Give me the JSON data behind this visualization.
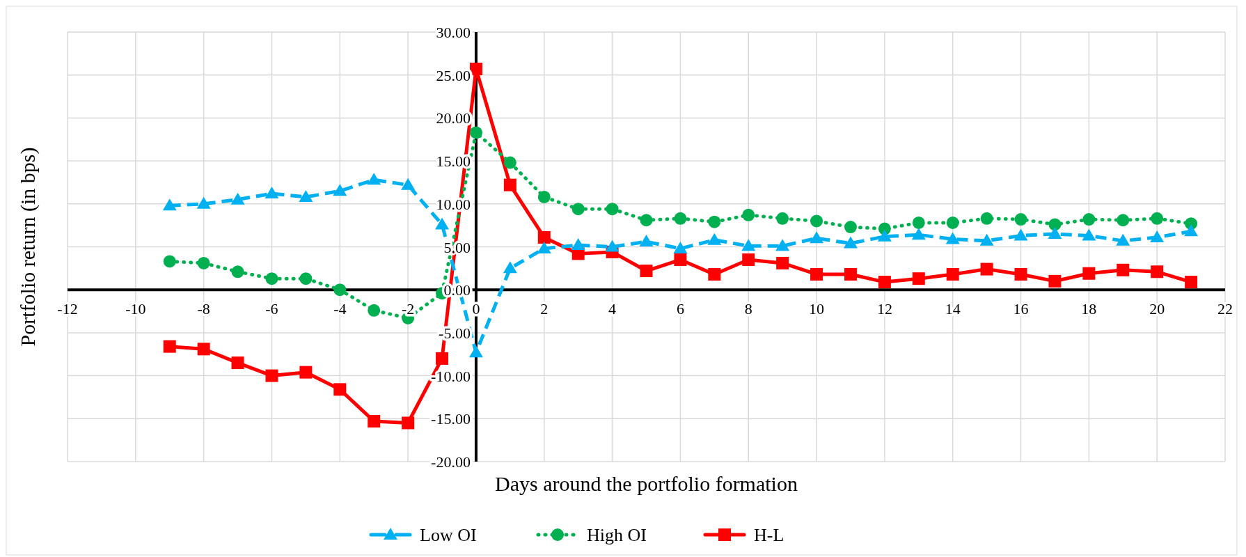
{
  "chart_data": {
    "type": "line",
    "xlabel": "Days around the portfolio formation",
    "ylabel": "Portfolio return (in bps)",
    "x": [
      -9,
      -8,
      -7,
      -6,
      -5,
      -4,
      -3,
      -2,
      -1,
      0,
      1,
      2,
      3,
      4,
      5,
      6,
      7,
      8,
      9,
      10,
      11,
      12,
      13,
      14,
      15,
      16,
      17,
      18,
      19,
      20,
      21
    ],
    "series": [
      {
        "name": "Low OI",
        "color": "#00b0f0",
        "marker": "triangle",
        "line_style": "dashed",
        "values": [
          9.8,
          10.0,
          10.5,
          11.2,
          10.8,
          11.5,
          12.8,
          12.2,
          7.6,
          -7.3,
          2.5,
          4.8,
          5.2,
          5.0,
          5.6,
          4.8,
          5.8,
          5.1,
          5.1,
          6.0,
          5.4,
          6.2,
          6.4,
          5.9,
          5.7,
          6.3,
          6.5,
          6.3,
          5.7,
          6.1,
          6.8
        ]
      },
      {
        "name": "High OI",
        "color": "#00b050",
        "marker": "circle",
        "line_style": "dotted",
        "values": [
          3.3,
          3.1,
          2.1,
          1.3,
          1.3,
          0.0,
          -2.4,
          -3.3,
          -0.4,
          18.3,
          14.8,
          10.8,
          9.4,
          9.4,
          8.1,
          8.3,
          7.9,
          8.7,
          8.3,
          8.0,
          7.3,
          7.1,
          7.8,
          7.8,
          8.3,
          8.2,
          7.6,
          8.2,
          8.1,
          8.3,
          7.7
        ]
      },
      {
        "name": "H-L",
        "color": "#ff0000",
        "marker": "square",
        "line_style": "solid",
        "values": [
          -6.6,
          -6.9,
          -8.5,
          -10.0,
          -9.6,
          -11.6,
          -15.3,
          -15.5,
          -8.0,
          25.7,
          12.2,
          6.1,
          4.2,
          4.4,
          2.2,
          3.5,
          1.8,
          3.5,
          3.1,
          1.8,
          1.8,
          0.9,
          1.3,
          1.8,
          2.4,
          1.8,
          1.0,
          1.9,
          2.3,
          2.1,
          0.9
        ]
      }
    ],
    "xlim": [
      -12,
      22
    ],
    "xticks": [
      -12,
      -10,
      -8,
      -6,
      -4,
      -2,
      0,
      2,
      4,
      6,
      8,
      10,
      12,
      14,
      16,
      18,
      20,
      22
    ],
    "ylim": [
      -20,
      30
    ],
    "yticks": [
      {
        "value": -20,
        "label": "-20.00"
      },
      {
        "value": -15,
        "label": "-15.00"
      },
      {
        "value": -10,
        "label": "-10.00"
      },
      {
        "value": -5,
        "label": "-5.00"
      },
      {
        "value": 0,
        "label": "0.00"
      },
      {
        "value": 5,
        "label": "5.00"
      },
      {
        "value": 10,
        "label": "10.00"
      },
      {
        "value": 15,
        "label": "15.00"
      },
      {
        "value": 20,
        "label": "20.00"
      },
      {
        "value": 25,
        "label": "25.00"
      },
      {
        "value": 30,
        "label": "30.00"
      }
    ],
    "grid": true,
    "legend": "bottom"
  }
}
